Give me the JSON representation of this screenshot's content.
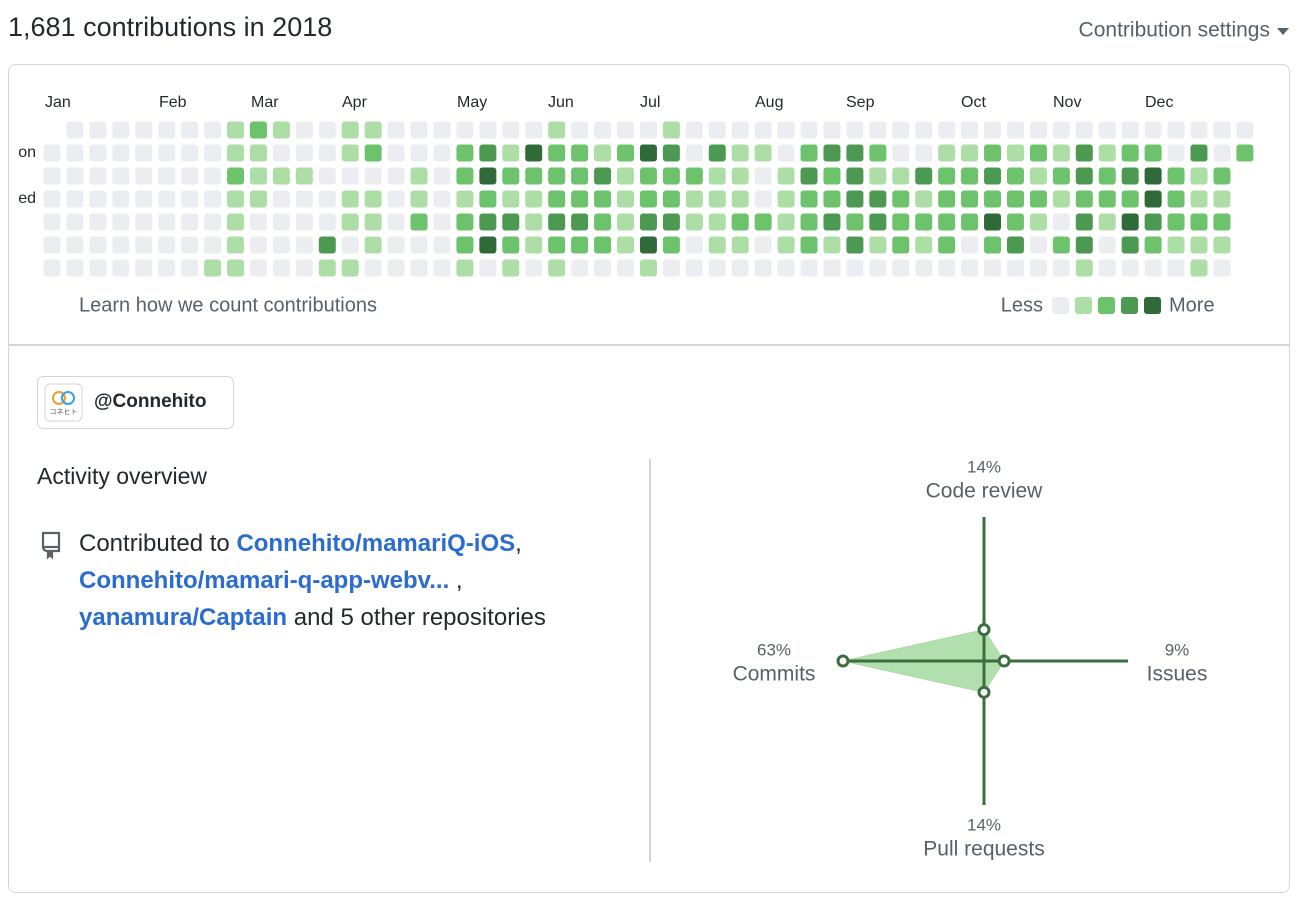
{
  "header": {
    "title": "1,681 contributions in 2018",
    "settings": "Contribution settings"
  },
  "calendar": {
    "months": [
      "Jan",
      "Feb",
      "Mar",
      "Apr",
      "May",
      "Jun",
      "Jul",
      "Aug",
      "Sep",
      "Oct",
      "Nov",
      "Dec"
    ],
    "day_labels": [
      "Mon",
      "Wed"
    ],
    "colors": [
      "#ebedf0",
      "#acdea6",
      "#6cc36c",
      "#4c9a52",
      "#2f6a38"
    ],
    "levels": [
      [
        null,
        0,
        0,
        0,
        0,
        0,
        0,
        0,
        1,
        2,
        1,
        0,
        0,
        1,
        1,
        0,
        0,
        0,
        0,
        0,
        0,
        0,
        1,
        0,
        0,
        0,
        0,
        1,
        0,
        0,
        0,
        0,
        0,
        0,
        0,
        0,
        0,
        0,
        0,
        0,
        0,
        0,
        0,
        0,
        0,
        0,
        0,
        0,
        0,
        0,
        0,
        0,
        0
      ],
      [
        0,
        0,
        0,
        0,
        0,
        0,
        0,
        0,
        1,
        1,
        0,
        0,
        0,
        1,
        2,
        0,
        0,
        0,
        2,
        3,
        1,
        4,
        2,
        2,
        1,
        2,
        4,
        3,
        0,
        3,
        1,
        1,
        0,
        2,
        3,
        3,
        2,
        0,
        0,
        1,
        1,
        2,
        1,
        2,
        1,
        3,
        1,
        2,
        2,
        0,
        3,
        0,
        2
      ],
      [
        0,
        0,
        0,
        0,
        0,
        0,
        0,
        0,
        2,
        1,
        1,
        1,
        0,
        0,
        0,
        0,
        1,
        0,
        2,
        4,
        2,
        2,
        2,
        2,
        3,
        1,
        2,
        2,
        2,
        1,
        1,
        0,
        1,
        3,
        2,
        3,
        1,
        1,
        3,
        2,
        2,
        3,
        2,
        1,
        2,
        3,
        2,
        3,
        4,
        2,
        1,
        2,
        null
      ],
      [
        0,
        0,
        0,
        0,
        0,
        0,
        0,
        0,
        1,
        1,
        0,
        0,
        0,
        1,
        1,
        0,
        1,
        0,
        1,
        2,
        1,
        1,
        2,
        2,
        2,
        1,
        2,
        2,
        1,
        1,
        1,
        0,
        1,
        2,
        2,
        3,
        3,
        2,
        1,
        2,
        2,
        2,
        2,
        2,
        1,
        2,
        2,
        2,
        4,
        2,
        1,
        1,
        null
      ],
      [
        0,
        0,
        0,
        0,
        0,
        0,
        0,
        0,
        1,
        0,
        0,
        0,
        0,
        1,
        1,
        0,
        2,
        0,
        2,
        3,
        3,
        1,
        3,
        3,
        2,
        1,
        3,
        3,
        1,
        1,
        2,
        2,
        1,
        2,
        3,
        2,
        3,
        2,
        2,
        2,
        2,
        4,
        2,
        1,
        0,
        3,
        1,
        4,
        3,
        2,
        2,
        2,
        null
      ],
      [
        0,
        0,
        0,
        0,
        0,
        0,
        0,
        0,
        1,
        0,
        0,
        0,
        3,
        0,
        1,
        0,
        0,
        0,
        2,
        4,
        2,
        1,
        2,
        2,
        2,
        1,
        4,
        2,
        0,
        1,
        1,
        0,
        1,
        2,
        1,
        3,
        1,
        2,
        1,
        2,
        0,
        2,
        3,
        0,
        2,
        3,
        0,
        3,
        2,
        1,
        1,
        1,
        null
      ],
      [
        0,
        0,
        0,
        0,
        0,
        0,
        0,
        1,
        1,
        0,
        0,
        0,
        1,
        1,
        0,
        0,
        0,
        0,
        1,
        0,
        1,
        0,
        1,
        0,
        0,
        0,
        1,
        0,
        0,
        0,
        0,
        0,
        0,
        0,
        0,
        0,
        0,
        0,
        0,
        0,
        0,
        0,
        0,
        0,
        0,
        1,
        0,
        0,
        0,
        0,
        1,
        0,
        null
      ]
    ],
    "learn": "Learn how we count contributions",
    "legend": {
      "less": "Less",
      "more": "More",
      "levels": [
        0,
        1,
        2,
        3,
        4
      ]
    }
  },
  "org": {
    "name": "@Connehito",
    "logo_text": "コネヒト"
  },
  "activity": {
    "title": "Activity overview",
    "sentence": [
      {
        "text": "Contributed to "
      },
      {
        "link": "Connehito/mamariQ-iOS"
      },
      {
        "text": ", "
      },
      {
        "link": "Connehito/mamari-q-app-webv..."
      },
      {
        "text": " , "
      },
      {
        "link": "yanamura/Captain"
      },
      {
        "text": " and 5 other repositories"
      }
    ]
  },
  "chart_data": {
    "type": "radar",
    "color": "#3d6e3f",
    "fill": "#a8dca4",
    "categories": [
      "Code review",
      "Issues",
      "Pull requests",
      "Commits"
    ],
    "values": [
      14,
      9,
      14,
      63
    ],
    "value_labels": [
      "14%",
      "9%",
      "14%",
      "63%"
    ]
  }
}
